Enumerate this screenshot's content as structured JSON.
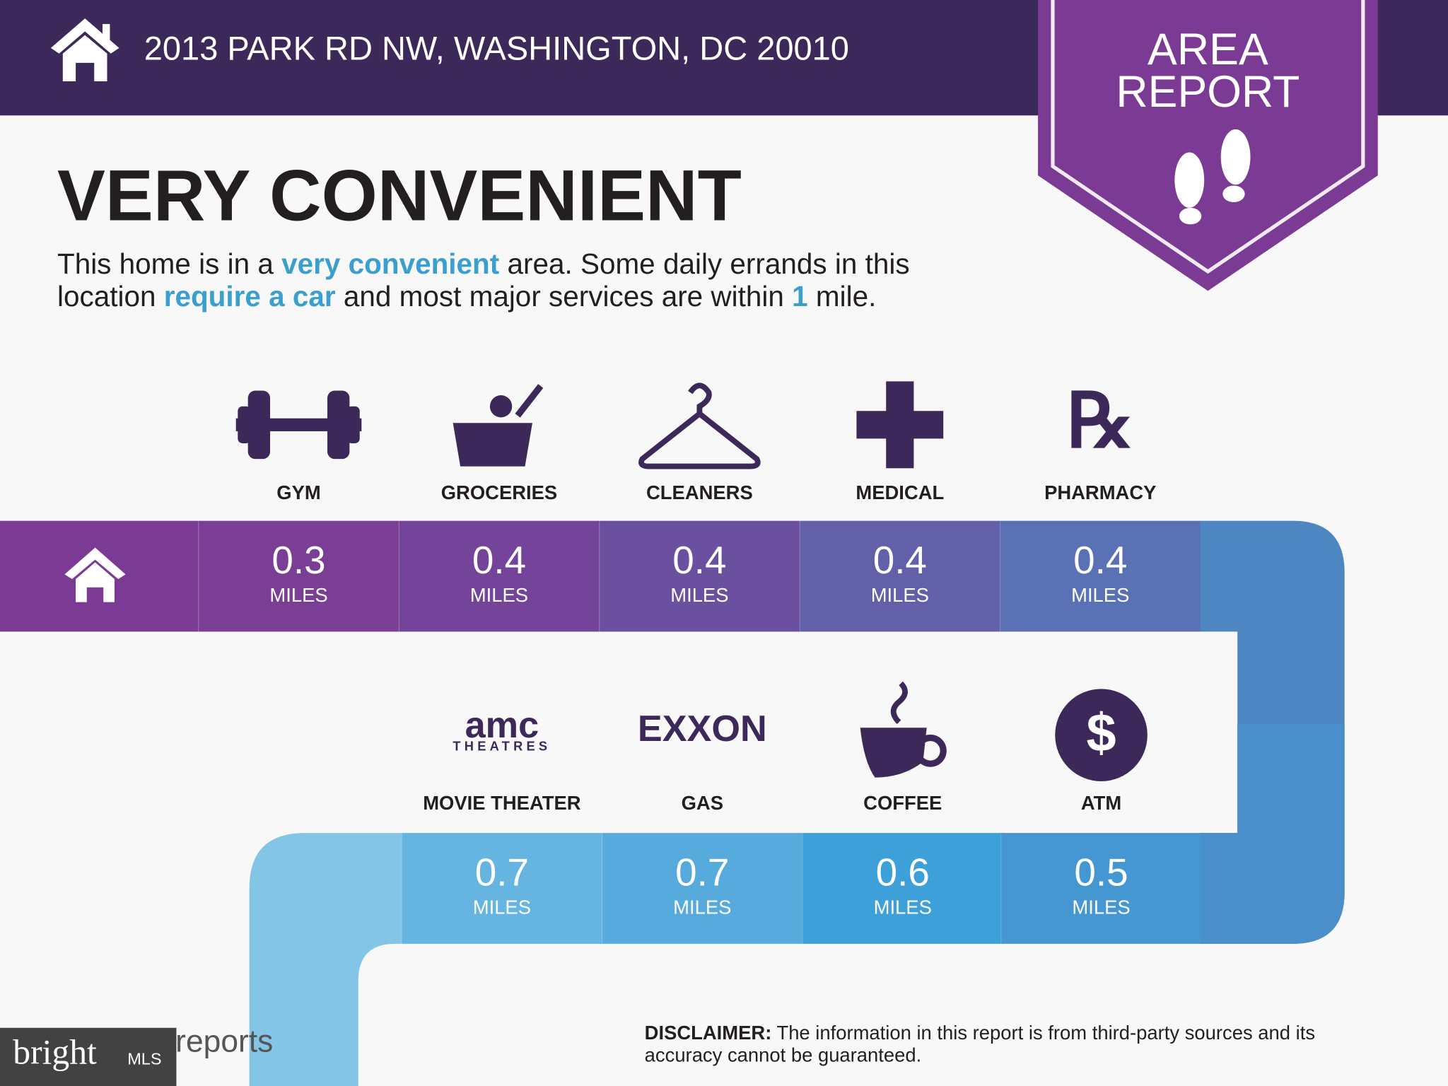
{
  "header": {
    "address": "2013 PARK RD NW, WASHINGTON, DC 20010"
  },
  "badge": {
    "line1": "AREA",
    "line2": "REPORT"
  },
  "headline": "VERY CONVENIENT",
  "description": [
    [
      {
        "text": "This home is in a ",
        "em": false
      },
      {
        "text": "very convenient",
        "em": true
      },
      {
        "text": " area. Some daily errands in this",
        "em": false
      }
    ],
    [
      {
        "text": "location ",
        "em": false
      },
      {
        "text": "require a car",
        "em": true
      },
      {
        "text": " and most major services are within ",
        "em": false
      },
      {
        "text": "1",
        "em": true
      },
      {
        "text": " mile.",
        "em": false
      }
    ]
  ],
  "services": [
    {
      "label": "GYM",
      "distance": 0.3,
      "unit": "MILES"
    },
    {
      "label": "GROCERIES",
      "distance": 0.4,
      "unit": "MILES"
    },
    {
      "label": "CLEANERS",
      "distance": 0.4,
      "unit": "MILES"
    },
    {
      "label": "MEDICAL",
      "distance": 0.4,
      "unit": "MILES"
    },
    {
      "label": "PHARMACY",
      "distance": 0.4,
      "unit": "MILES"
    },
    {
      "label": "MOVIE THEATER",
      "distance": 0.7,
      "unit": "MILES",
      "logo": [
        "amc",
        "THEATRES"
      ]
    },
    {
      "label": "GAS",
      "distance": 0.7,
      "unit": "MILES",
      "logo": [
        "EXXON"
      ]
    },
    {
      "label": "COFFEE",
      "distance": 0.6,
      "unit": "MILES"
    },
    {
      "label": "ATM",
      "distance": 0.5,
      "unit": "MILES",
      "logo": [
        "$"
      ]
    }
  ],
  "footer": {
    "logo": "reports",
    "watermark": [
      "bright",
      "MLS"
    ],
    "disclaimer_label": "DISCLAIMER:",
    "disclaimer": " The information in this report is from third-party sources and its",
    "disclaimer_line2": "accuracy cannot be guaranteed."
  }
}
